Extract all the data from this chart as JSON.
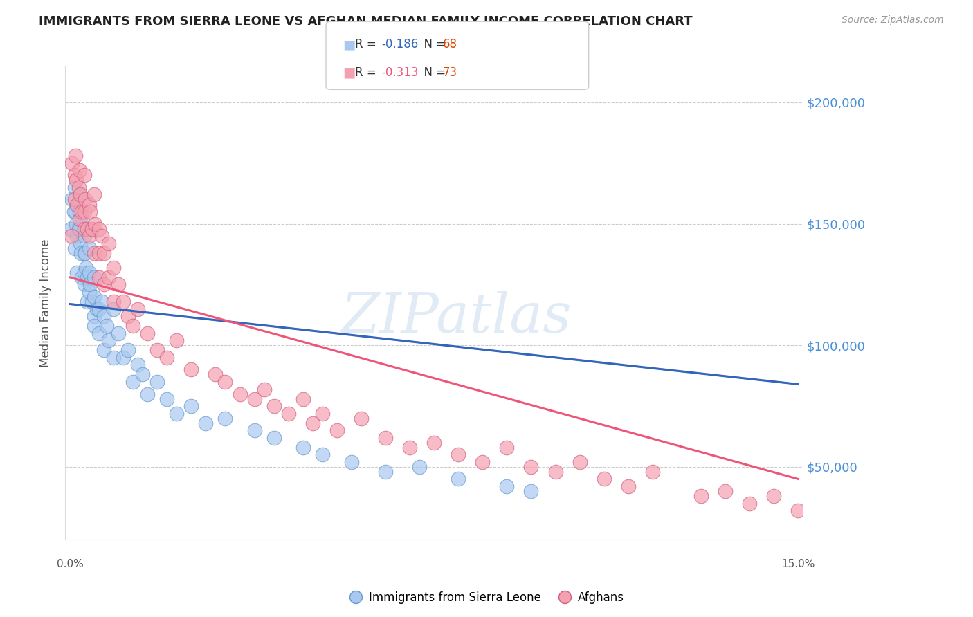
{
  "title": "IMMIGRANTS FROM SIERRA LEONE VS AFGHAN MEDIAN FAMILY INCOME CORRELATION CHART",
  "source": "Source: ZipAtlas.com",
  "ylabel": "Median Family Income",
  "ytick_labels": [
    "$50,000",
    "$100,000",
    "$150,000",
    "$200,000"
  ],
  "ytick_values": [
    50000,
    100000,
    150000,
    200000
  ],
  "xlim": [
    -0.001,
    0.151
  ],
  "ylim": [
    20000,
    215000
  ],
  "blue_scatter_color": "#a8c8f0",
  "blue_edge_color": "#6699cc",
  "pink_scatter_color": "#f4a0b0",
  "pink_edge_color": "#d06080",
  "blue_line_color": "#3366bb",
  "pink_line_color": "#ee5577",
  "blue_dash_color": "#6699cc",
  "blue_R": -0.186,
  "blue_N": 68,
  "pink_R": -0.313,
  "pink_N": 73,
  "legend_label_blue": "Immigrants from Sierra Leone",
  "legend_label_pink": "Afghans",
  "watermark": "ZIPatlas",
  "blue_line_x0": 0.0,
  "blue_line_y0": 117000,
  "blue_line_x1": 0.15,
  "blue_line_y1": 84000,
  "pink_line_x0": 0.0,
  "pink_line_y0": 128000,
  "pink_line_x1": 0.15,
  "pink_line_y1": 45000,
  "sierra_leone_x": [
    0.0002,
    0.0005,
    0.0008,
    0.001,
    0.001,
    0.0012,
    0.0013,
    0.0014,
    0.0015,
    0.0015,
    0.0018,
    0.002,
    0.002,
    0.002,
    0.0022,
    0.0023,
    0.0025,
    0.0025,
    0.003,
    0.003,
    0.003,
    0.003,
    0.0032,
    0.0033,
    0.0035,
    0.0035,
    0.004,
    0.004,
    0.004,
    0.0042,
    0.0045,
    0.005,
    0.005,
    0.005,
    0.005,
    0.0055,
    0.006,
    0.006,
    0.0065,
    0.007,
    0.007,
    0.0075,
    0.008,
    0.009,
    0.009,
    0.01,
    0.011,
    0.012,
    0.013,
    0.014,
    0.015,
    0.016,
    0.018,
    0.02,
    0.022,
    0.025,
    0.028,
    0.032,
    0.038,
    0.042,
    0.048,
    0.052,
    0.058,
    0.065,
    0.072,
    0.08,
    0.09,
    0.095
  ],
  "sierra_leone_y": [
    148000,
    160000,
    155000,
    140000,
    165000,
    155000,
    150000,
    145000,
    158000,
    130000,
    148000,
    162000,
    155000,
    148000,
    142000,
    138000,
    152000,
    128000,
    145000,
    138000,
    130000,
    125000,
    138000,
    132000,
    128000,
    118000,
    140000,
    130000,
    122000,
    125000,
    118000,
    128000,
    120000,
    112000,
    108000,
    115000,
    115000,
    105000,
    118000,
    112000,
    98000,
    108000,
    102000,
    115000,
    95000,
    105000,
    95000,
    98000,
    85000,
    92000,
    88000,
    80000,
    85000,
    78000,
    72000,
    75000,
    68000,
    70000,
    65000,
    62000,
    58000,
    55000,
    52000,
    48000,
    50000,
    45000,
    42000,
    40000
  ],
  "afghan_x": [
    0.0003,
    0.0005,
    0.001,
    0.001,
    0.0012,
    0.0013,
    0.0015,
    0.0018,
    0.002,
    0.002,
    0.0022,
    0.0025,
    0.003,
    0.003,
    0.003,
    0.0032,
    0.0035,
    0.004,
    0.004,
    0.0042,
    0.0045,
    0.005,
    0.005,
    0.0052,
    0.006,
    0.006,
    0.006,
    0.0065,
    0.007,
    0.007,
    0.008,
    0.008,
    0.009,
    0.009,
    0.01,
    0.011,
    0.012,
    0.013,
    0.014,
    0.016,
    0.018,
    0.02,
    0.022,
    0.025,
    0.03,
    0.032,
    0.035,
    0.038,
    0.04,
    0.042,
    0.045,
    0.048,
    0.05,
    0.052,
    0.055,
    0.06,
    0.065,
    0.07,
    0.075,
    0.08,
    0.085,
    0.09,
    0.095,
    0.1,
    0.105,
    0.11,
    0.115,
    0.12,
    0.13,
    0.135,
    0.14,
    0.145,
    0.15
  ],
  "afghan_y": [
    145000,
    175000,
    170000,
    160000,
    178000,
    168000,
    158000,
    165000,
    172000,
    152000,
    162000,
    155000,
    170000,
    155000,
    148000,
    160000,
    148000,
    158000,
    145000,
    155000,
    148000,
    162000,
    138000,
    150000,
    148000,
    138000,
    128000,
    145000,
    138000,
    125000,
    142000,
    128000,
    132000,
    118000,
    125000,
    118000,
    112000,
    108000,
    115000,
    105000,
    98000,
    95000,
    102000,
    90000,
    88000,
    85000,
    80000,
    78000,
    82000,
    75000,
    72000,
    78000,
    68000,
    72000,
    65000,
    70000,
    62000,
    58000,
    60000,
    55000,
    52000,
    58000,
    50000,
    48000,
    52000,
    45000,
    42000,
    48000,
    38000,
    40000,
    35000,
    38000,
    32000
  ]
}
